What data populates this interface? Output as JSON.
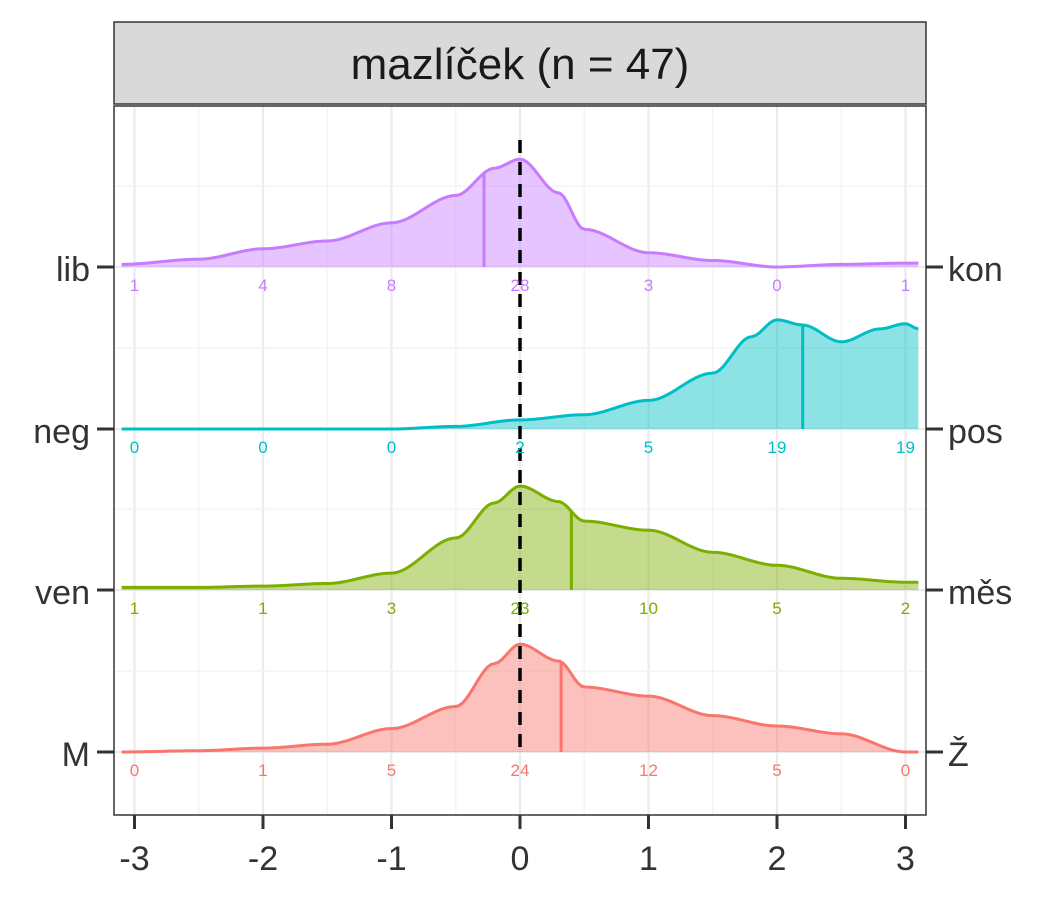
{
  "chart_data": {
    "type": "area",
    "title": "mazlíček (n = 47)",
    "xlim": [
      -3.1,
      3.1
    ],
    "x_ticks": [
      -3,
      -2,
      -1,
      0,
      1,
      2,
      3
    ],
    "x_tick_labels": [
      "-3",
      "-2",
      "-1",
      "0",
      "1",
      "2",
      "3"
    ],
    "reference_line_x": 0,
    "grid": true,
    "series": [
      {
        "left_label": "M",
        "right_label": "Ž",
        "color": "#F8766D",
        "counts": [
          0,
          1,
          5,
          24,
          12,
          5,
          0
        ],
        "mean": 0.32,
        "density": [
          [
            -3.1,
            0.0
          ],
          [
            -2.5,
            0.01
          ],
          [
            -2.0,
            0.03
          ],
          [
            -1.5,
            0.06
          ],
          [
            -1.0,
            0.18
          ],
          [
            -0.5,
            0.35
          ],
          [
            -0.2,
            0.68
          ],
          [
            0.0,
            0.83
          ],
          [
            0.3,
            0.7
          ],
          [
            0.5,
            0.5
          ],
          [
            1.0,
            0.43
          ],
          [
            1.5,
            0.28
          ],
          [
            2.0,
            0.2
          ],
          [
            2.5,
            0.14
          ],
          [
            3.0,
            0.0
          ],
          [
            3.1,
            0.0
          ]
        ]
      },
      {
        "left_label": "ven",
        "right_label": "měs",
        "color": "#7CAE00",
        "counts": [
          1,
          1,
          3,
          23,
          10,
          5,
          2
        ],
        "mean": 0.4,
        "density": [
          [
            -3.1,
            0.02
          ],
          [
            -2.5,
            0.02
          ],
          [
            -2.0,
            0.03
          ],
          [
            -1.5,
            0.05
          ],
          [
            -1.0,
            0.13
          ],
          [
            -0.5,
            0.4
          ],
          [
            -0.2,
            0.67
          ],
          [
            0.0,
            0.8
          ],
          [
            0.3,
            0.68
          ],
          [
            0.5,
            0.53
          ],
          [
            1.0,
            0.46
          ],
          [
            1.5,
            0.29
          ],
          [
            2.0,
            0.19
          ],
          [
            2.5,
            0.09
          ],
          [
            3.0,
            0.06
          ],
          [
            3.1,
            0.06
          ]
        ]
      },
      {
        "left_label": "neg",
        "right_label": "pos",
        "color": "#00BFC4",
        "counts": [
          0,
          0,
          0,
          2,
          5,
          19,
          19
        ],
        "mean": 2.2,
        "density": [
          [
            -3.1,
            0.0
          ],
          [
            -2.0,
            0.0
          ],
          [
            -1.0,
            0.0
          ],
          [
            -0.5,
            0.02
          ],
          [
            0.0,
            0.07
          ],
          [
            0.5,
            0.11
          ],
          [
            1.0,
            0.22
          ],
          [
            1.5,
            0.43
          ],
          [
            1.8,
            0.71
          ],
          [
            2.0,
            0.84
          ],
          [
            2.2,
            0.8
          ],
          [
            2.5,
            0.67
          ],
          [
            2.8,
            0.77
          ],
          [
            3.0,
            0.81
          ],
          [
            3.1,
            0.77
          ]
        ]
      },
      {
        "left_label": "lib",
        "right_label": "kon",
        "color": "#C77CFF",
        "counts": [
          1,
          4,
          8,
          28,
          3,
          0,
          1
        ],
        "mean": -0.28,
        "density": [
          [
            -3.1,
            0.02
          ],
          [
            -2.5,
            0.06
          ],
          [
            -2.0,
            0.14
          ],
          [
            -1.5,
            0.2
          ],
          [
            -1.0,
            0.34
          ],
          [
            -0.5,
            0.55
          ],
          [
            -0.2,
            0.76
          ],
          [
            0.0,
            0.83
          ],
          [
            0.3,
            0.57
          ],
          [
            0.5,
            0.29
          ],
          [
            1.0,
            0.11
          ],
          [
            1.5,
            0.05
          ],
          [
            2.0,
            0.0
          ],
          [
            2.5,
            0.02
          ],
          [
            3.0,
            0.03
          ],
          [
            3.1,
            0.03
          ]
        ]
      }
    ]
  }
}
